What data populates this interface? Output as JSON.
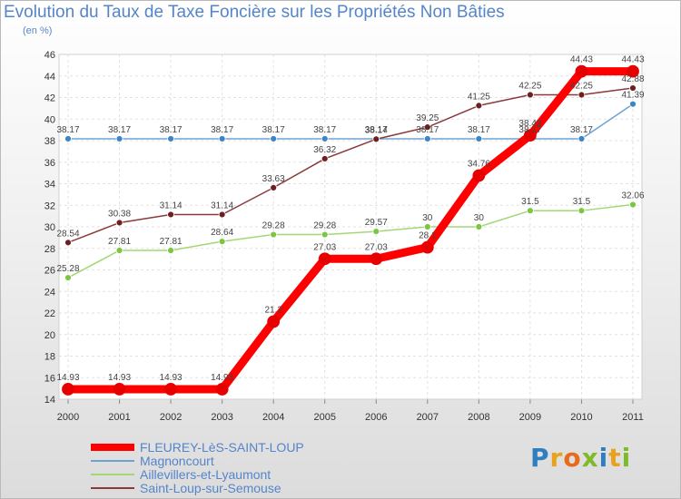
{
  "title": "Evolution du Taux de Taxe Foncière sur les Propriétés Non Bâties",
  "unit_label": "(en %)",
  "logo": {
    "text": "Proxiti",
    "colors": [
      "#2f7fc0",
      "#e8a21c",
      "#e86a1c",
      "#7fba2a",
      "#2f7fc0",
      "#e8a21c",
      "#7fba2a"
    ]
  },
  "chart_data": {
    "type": "line",
    "title": "Evolution du Taux de Taxe Foncière sur les Propriétés Non Bâties",
    "ylabel": "(en %)",
    "xlabel": "",
    "x": [
      "2000",
      "2001",
      "2002",
      "2003",
      "2004",
      "2005",
      "2006",
      "2007",
      "2008",
      "2009",
      "2010",
      "2011"
    ],
    "ylim": [
      14,
      46
    ],
    "yticks": [
      14,
      16,
      18,
      20,
      22,
      24,
      26,
      28,
      30,
      32,
      34,
      36,
      38,
      40,
      42,
      44,
      46
    ],
    "grid": true,
    "legend_position": "bottom-left",
    "series": [
      {
        "name": "Magnoncourt",
        "color": "#6da3d3",
        "marker_color": "#3d86c6",
        "thick": false,
        "values": [
          38.17,
          38.17,
          38.17,
          38.17,
          38.17,
          38.17,
          38.17,
          38.17,
          38.17,
          38.17,
          38.17,
          41.39
        ],
        "labels": [
          "38.17",
          "38.17",
          "38.17",
          "38.17",
          "38.17",
          "38.17",
          "38.17",
          "38.17",
          "38.17",
          "38.17",
          "38.17",
          "41.39"
        ]
      },
      {
        "name": "Aillevillers-et-Lyaumont",
        "color": "#a3d776",
        "marker_color": "#7cc640",
        "thick": false,
        "values": [
          25.28,
          27.81,
          27.81,
          28.64,
          29.28,
          29.28,
          29.57,
          30,
          30,
          31.5,
          31.5,
          32.06
        ],
        "labels": [
          "25.28",
          "27.81",
          "27.81",
          "28.64",
          "29.28",
          "29.28",
          "29.57",
          "30",
          "30",
          "31.5",
          "31.5",
          "32.06"
        ]
      },
      {
        "name": "Saint-Loup-sur-Semouse",
        "color": "#8a3a3a",
        "marker_color": "#6e2020",
        "thick": false,
        "values": [
          28.54,
          30.38,
          31.14,
          31.14,
          33.63,
          36.32,
          38.14,
          39.25,
          41.25,
          42.25,
          42.25,
          42.88
        ],
        "labels": [
          "28.54",
          "30.38",
          "31.14",
          "31.14",
          "33.63",
          "36.32",
          "38.14",
          "39.25",
          "41.25",
          "42.25",
          "42.25",
          "42.88"
        ]
      },
      {
        "name": "FLEUREY-LèS-SAINT-LOUP",
        "color": "#ff0000",
        "marker_color": "#e60000",
        "thick": true,
        "values": [
          14.93,
          14.93,
          14.93,
          14.93,
          21.2,
          27.03,
          27.03,
          28.1,
          34.76,
          38.49,
          44.43,
          44.43
        ],
        "labels": [
          "14.93",
          "14.93",
          "14.93",
          "14.93",
          "21.2",
          "27.03",
          "27.03",
          "28.1",
          "34.76",
          "38.49",
          "44.43",
          "44.43"
        ]
      }
    ],
    "legend": [
      {
        "name": "FLEUREY-LèS-SAINT-LOUP",
        "color": "#ff0000",
        "thick": true
      },
      {
        "name": "Magnoncourt",
        "color": "#6da3d3",
        "thick": false
      },
      {
        "name": "Aillevillers-et-Lyaumont",
        "color": "#a3d776",
        "thick": false
      },
      {
        "name": "Saint-Loup-sur-Semouse",
        "color": "#8a3a3a",
        "thick": false
      }
    ]
  }
}
